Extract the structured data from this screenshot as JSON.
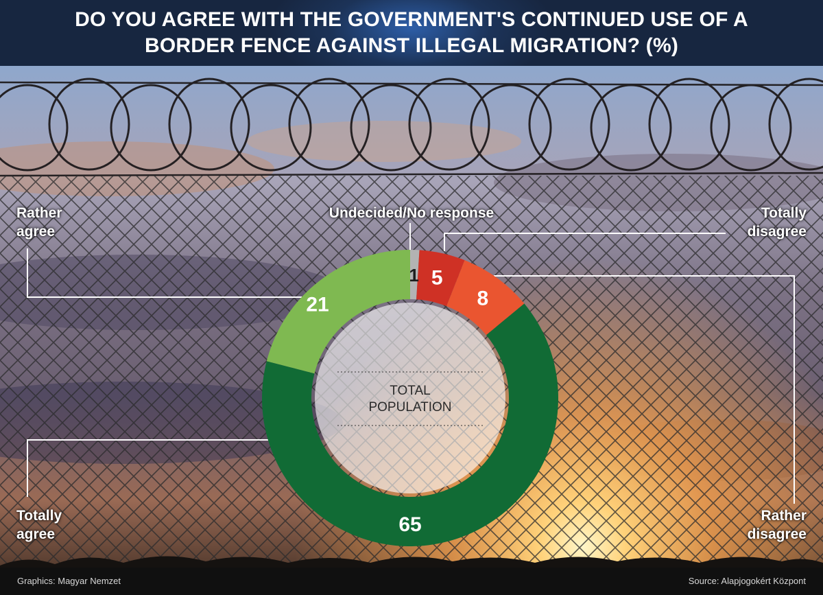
{
  "title": "DO YOU AGREE WITH THE GOVERNMENT'S CONTINUED USE OF A BORDER FENCE AGAINST ILLEGAL MIGRATION? (%)",
  "footer": {
    "credit": "Graphics: Magyar Nemzet",
    "source": "Source: Alapjogokért Központ"
  },
  "center_label": "TOTAL POPULATION",
  "colors": {
    "header_bg": "#172640",
    "totally_agree": "#116b35",
    "rather_agree": "#7fb951",
    "undecided": "#b3b3b3",
    "totally_disagree": "#cf3125",
    "rather_disagree": "#ea5530"
  },
  "chart_data": {
    "type": "pie",
    "donut": true,
    "title": "DO YOU AGREE WITH THE GOVERNMENT'S CONTINUED USE OF A BORDER FENCE AGAINST ILLEGAL MIGRATION? (%)",
    "center_text": "TOTAL POPULATION",
    "slices": [
      {
        "name": "Undecided/No response",
        "display_label": "Undecided/No response",
        "value": 1,
        "color": "#b3b3b3"
      },
      {
        "name": "Totally disagree",
        "display_label": "Totally\ndisagree",
        "value": 5,
        "color": "#cf3125"
      },
      {
        "name": "Rather disagree",
        "display_label": "Rather\ndisagree",
        "value": 8,
        "color": "#ea5530"
      },
      {
        "name": "Totally agree",
        "display_label": "Totally\nagree",
        "value": 65,
        "color": "#116b35"
      },
      {
        "name": "Rather agree",
        "display_label": "Rather\nagree",
        "value": 21,
        "color": "#7fb951"
      }
    ],
    "unit": "%"
  }
}
